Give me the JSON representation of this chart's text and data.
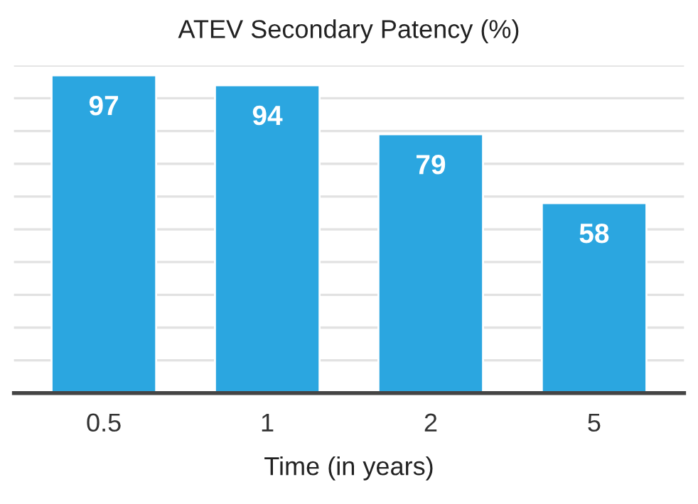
{
  "chart_data": {
    "type": "bar",
    "title": "ATEV Secondary Patency (%)",
    "xlabel": "Time (in years)",
    "categories": [
      "0.5",
      "1",
      "2",
      "5"
    ],
    "values": [
      97,
      94,
      79,
      58
    ],
    "color": "#2ba6e0",
    "ylim": [
      0,
      100
    ],
    "yticks": [
      {
        "value": 0,
        "label": null
      },
      {
        "value": 10,
        "label": null
      },
      {
        "value": 20,
        "label": null
      },
      {
        "value": 30,
        "label": null
      },
      {
        "value": 40,
        "label": null
      },
      {
        "value": 50,
        "label": null
      },
      {
        "value": 60,
        "label": null
      },
      {
        "value": 70,
        "label": null
      },
      {
        "value": 80,
        "label": null
      },
      {
        "value": 90,
        "label": null
      },
      {
        "value": 100,
        "label": null
      }
    ],
    "tick_labels": "x",
    "grid": "y",
    "data_labels": true
  }
}
